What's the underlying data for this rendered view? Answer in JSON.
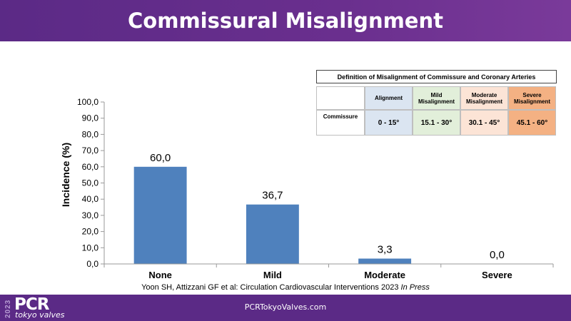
{
  "slide": {
    "title": "Commissural Misalignment",
    "source_text": "Yoon SH, Attizzani GF et al: Circulation Cardiovascular Interventions 2023",
    "source_emph": "In Press"
  },
  "footer": {
    "url": "PCRTokyoValves.com",
    "logo_year": "2023",
    "logo_main": "PCR",
    "logo_sub": "tokyo valves"
  },
  "definition_table": {
    "title": "Definition of Misalignment of Commissure and Coronary Arteries",
    "headers": [
      "",
      "Alignment",
      "Mild Misalignment",
      "Moderate Misalignment",
      "Severe Misalignment"
    ],
    "row_label": "Commissure",
    "values": [
      "0 - 15°",
      "15.1 - 30°",
      "30.1 - 45°",
      "45.1 - 60°"
    ],
    "colors": [
      "#ffffff",
      "#dbe5f1",
      "#e2efda",
      "#fce4d6",
      "#f4b183"
    ]
  },
  "chart_data": {
    "type": "bar",
    "categories": [
      "None",
      "Mild",
      "Moderate",
      "Severe"
    ],
    "values": [
      60.0,
      36.7,
      3.3,
      0.0
    ],
    "value_labels": [
      "60,0",
      "36,7",
      "3,3",
      "0,0"
    ],
    "ylabel": "Incidence (%)",
    "ylim": [
      0,
      100
    ],
    "yticks": [
      "0,0",
      "10,0",
      "20,0",
      "30,0",
      "40,0",
      "50,0",
      "60,0",
      "70,0",
      "80,0",
      "90,0",
      "100,0"
    ],
    "bar_color": "#4f81bd",
    "grid": false
  }
}
